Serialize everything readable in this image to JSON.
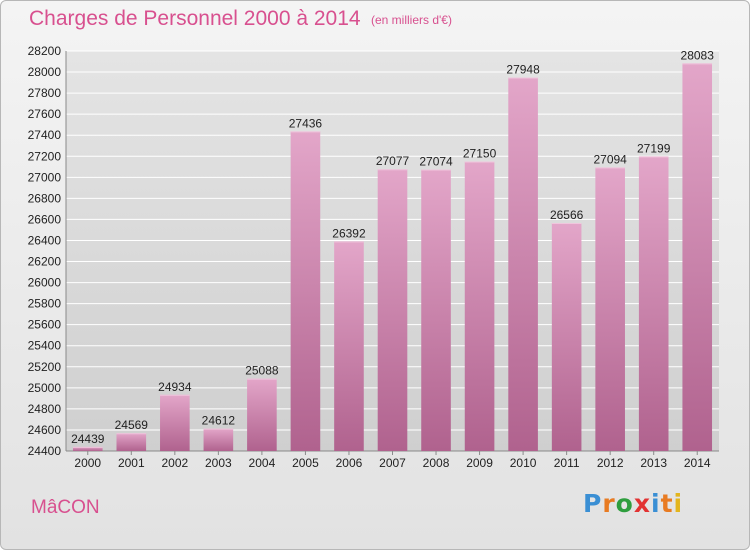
{
  "header": {
    "title": "Charges de Personnel 2000 à 2014",
    "subtitle": "(en milliers d'€)"
  },
  "footer": {
    "city": "MâCON",
    "logo_text": "Proxiti",
    "logo_colors": [
      "#3a8fd4",
      "#e87b22",
      "#2e9e3e",
      "#e23232",
      "#3a8fd4",
      "#e87b22",
      "#e3b51d"
    ]
  },
  "chart_data": {
    "type": "bar",
    "title": "Charges de Personnel 2000 à 2014",
    "subtitle": "(en milliers d'€)",
    "xlabel": "",
    "ylabel": "",
    "categories": [
      "2000",
      "2001",
      "2002",
      "2003",
      "2004",
      "2005",
      "2006",
      "2007",
      "2008",
      "2009",
      "2010",
      "2011",
      "2012",
      "2013",
      "2014"
    ],
    "values": [
      24439,
      24569,
      24934,
      24612,
      25088,
      27436,
      26392,
      27077,
      27074,
      27150,
      27948,
      26566,
      27094,
      27199,
      28083
    ],
    "ylim": [
      24400,
      28200
    ],
    "yticks": [
      24400,
      24600,
      24800,
      25000,
      25200,
      25400,
      25600,
      25800,
      26000,
      26200,
      26400,
      26600,
      26800,
      27000,
      27200,
      27400,
      27600,
      27800,
      28000,
      28200
    ],
    "grid": true,
    "bar_color": "#d97fb0",
    "grid_color": "#ffffff"
  }
}
